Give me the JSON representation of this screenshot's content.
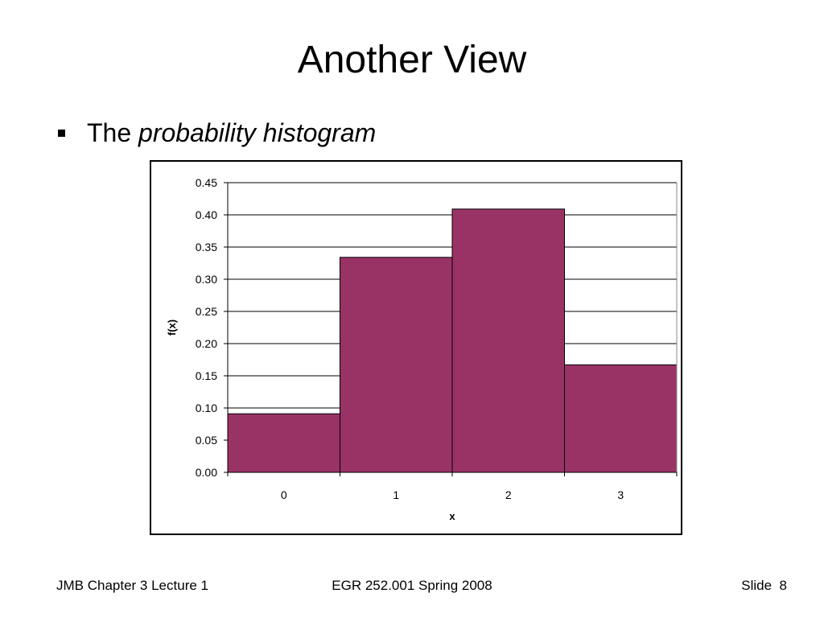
{
  "slide": {
    "title": "Another View",
    "bullet": {
      "prefix": "The ",
      "emphasis": "probability histogram"
    }
  },
  "footer": {
    "left": "JMB Chapter 3 Lecture 1",
    "center": "EGR 252.001 Spring 2008",
    "slide_label": "Slide",
    "slide_number": "8"
  },
  "colors": {
    "bar_fill": "#993366",
    "bar_stroke": "#000000",
    "grid": "#000000"
  },
  "chart_data": {
    "type": "bar",
    "categories": [
      "0",
      "1",
      "2",
      "3"
    ],
    "values": [
      0.091,
      0.334,
      0.409,
      0.167
    ],
    "xlabel": "x",
    "ylabel": "f(x)",
    "ylim": [
      0,
      0.45
    ],
    "yticks": [
      "0.00",
      "0.05",
      "0.10",
      "0.15",
      "0.20",
      "0.25",
      "0.30",
      "0.35",
      "0.40",
      "0.45"
    ],
    "grid": true,
    "bar_gap": 0,
    "legend": "none"
  }
}
